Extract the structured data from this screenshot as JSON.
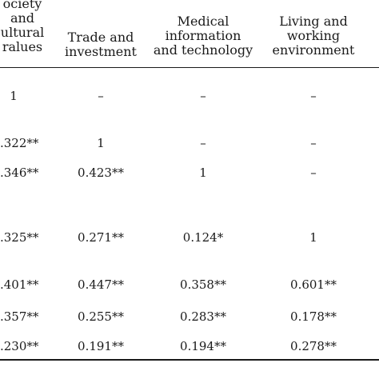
{
  "headers": [
    [
      "ociety",
      "and",
      "ultural",
      "ralues"
    ],
    [
      "Trade and",
      "investment"
    ],
    [
      "Medical",
      "information",
      "and technology"
    ],
    [
      "Living and",
      "working",
      "environment"
    ]
  ],
  "rows": [
    [
      "1",
      "–",
      "–",
      "–"
    ],
    [
      ".322**",
      "1",
      "–",
      "–"
    ],
    [
      ".346**",
      "0.423**",
      "1",
      "–"
    ],
    [
      ".325**",
      "0.271**",
      "0.124*",
      "1"
    ],
    [
      ".401**",
      "0.447**",
      "0.358**",
      "0.601**"
    ],
    [
      ".357**",
      "0.255**",
      "0.283**",
      "0.178**"
    ],
    [
      ".230**",
      "0.191**",
      "0.194**",
      "0.278**"
    ]
  ]
}
